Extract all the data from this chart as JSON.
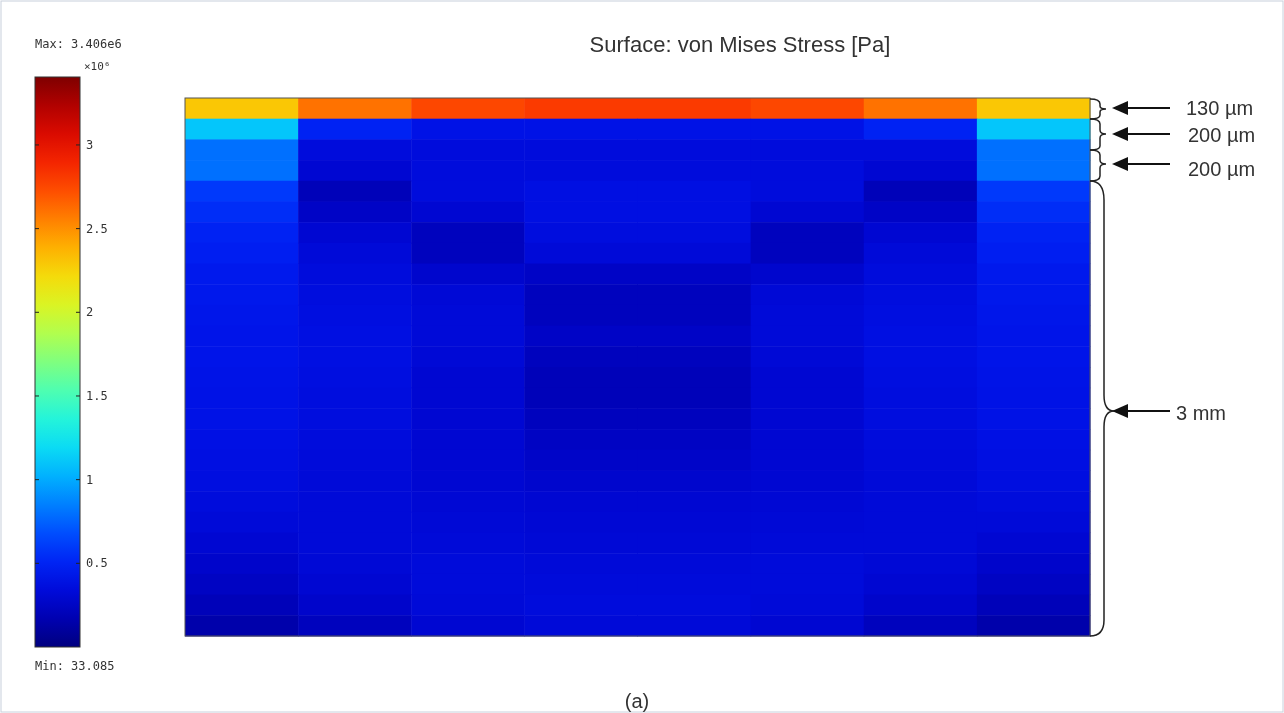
{
  "chart_data": {
    "type": "heatmap",
    "title": "Surface: von Mises Stress [Pa]",
    "clabel": "×10⁶",
    "annotations": [
      "Max: 3.406e6",
      "Min: 33.085",
      "130 µm",
      "200 µm",
      "200 µm",
      "3 mm",
      "(a)"
    ],
    "categories": [
      null,
      null,
      null,
      null,
      null,
      null,
      null,
      null
    ],
    "y_categories": [
      null,
      null,
      null,
      null,
      null,
      null,
      null,
      null,
      null,
      null,
      null,
      null,
      null,
      null,
      null,
      null,
      null,
      null,
      null,
      null,
      null,
      null,
      null,
      null,
      null,
      null
    ],
    "clim": [
      3.3085e-05,
      3.406
    ],
    "cticks": [
      0.5,
      1,
      1.5,
      2,
      2.5,
      3
    ],
    "cells": [
      [
        2.3,
        2.6,
        2.75,
        2.8,
        2.8,
        2.75,
        2.6,
        2.3
      ],
      [
        1.1,
        0.5,
        0.4,
        0.4,
        0.4,
        0.4,
        0.5,
        1.1
      ],
      [
        0.8,
        0.35,
        0.35,
        0.35,
        0.35,
        0.35,
        0.35,
        0.8
      ],
      [
        0.8,
        0.3,
        0.35,
        0.35,
        0.35,
        0.35,
        0.3,
        0.8
      ],
      [
        0.6,
        0.2,
        0.35,
        0.38,
        0.38,
        0.35,
        0.2,
        0.6
      ],
      [
        0.55,
        0.25,
        0.3,
        0.38,
        0.38,
        0.3,
        0.25,
        0.55
      ],
      [
        0.5,
        0.3,
        0.22,
        0.36,
        0.36,
        0.22,
        0.3,
        0.5
      ],
      [
        0.48,
        0.33,
        0.22,
        0.33,
        0.33,
        0.22,
        0.33,
        0.48
      ],
      [
        0.45,
        0.35,
        0.28,
        0.25,
        0.25,
        0.28,
        0.35,
        0.45
      ],
      [
        0.44,
        0.36,
        0.32,
        0.22,
        0.22,
        0.32,
        0.36,
        0.44
      ],
      [
        0.43,
        0.37,
        0.33,
        0.22,
        0.22,
        0.33,
        0.37,
        0.43
      ],
      [
        0.42,
        0.38,
        0.33,
        0.25,
        0.25,
        0.33,
        0.38,
        0.42
      ],
      [
        0.42,
        0.38,
        0.32,
        0.22,
        0.22,
        0.32,
        0.38,
        0.42
      ],
      [
        0.41,
        0.37,
        0.3,
        0.2,
        0.2,
        0.3,
        0.37,
        0.41
      ],
      [
        0.4,
        0.36,
        0.3,
        0.2,
        0.2,
        0.3,
        0.36,
        0.4
      ],
      [
        0.4,
        0.36,
        0.3,
        0.22,
        0.22,
        0.3,
        0.36,
        0.4
      ],
      [
        0.39,
        0.35,
        0.3,
        0.24,
        0.24,
        0.3,
        0.35,
        0.39
      ],
      [
        0.38,
        0.34,
        0.3,
        0.26,
        0.26,
        0.3,
        0.34,
        0.38
      ],
      [
        0.37,
        0.33,
        0.3,
        0.28,
        0.28,
        0.3,
        0.33,
        0.37
      ],
      [
        0.35,
        0.33,
        0.31,
        0.3,
        0.3,
        0.31,
        0.33,
        0.35
      ],
      [
        0.33,
        0.33,
        0.32,
        0.31,
        0.31,
        0.32,
        0.33,
        0.33
      ],
      [
        0.3,
        0.33,
        0.33,
        0.32,
        0.32,
        0.33,
        0.33,
        0.3
      ],
      [
        0.27,
        0.32,
        0.34,
        0.33,
        0.33,
        0.34,
        0.32,
        0.27
      ],
      [
        0.24,
        0.3,
        0.34,
        0.34,
        0.34,
        0.34,
        0.3,
        0.24
      ],
      [
        0.2,
        0.27,
        0.33,
        0.35,
        0.35,
        0.33,
        0.27,
        0.2
      ],
      [
        0.15,
        0.22,
        0.3,
        0.33,
        0.33,
        0.3,
        0.22,
        0.15
      ]
    ]
  }
}
